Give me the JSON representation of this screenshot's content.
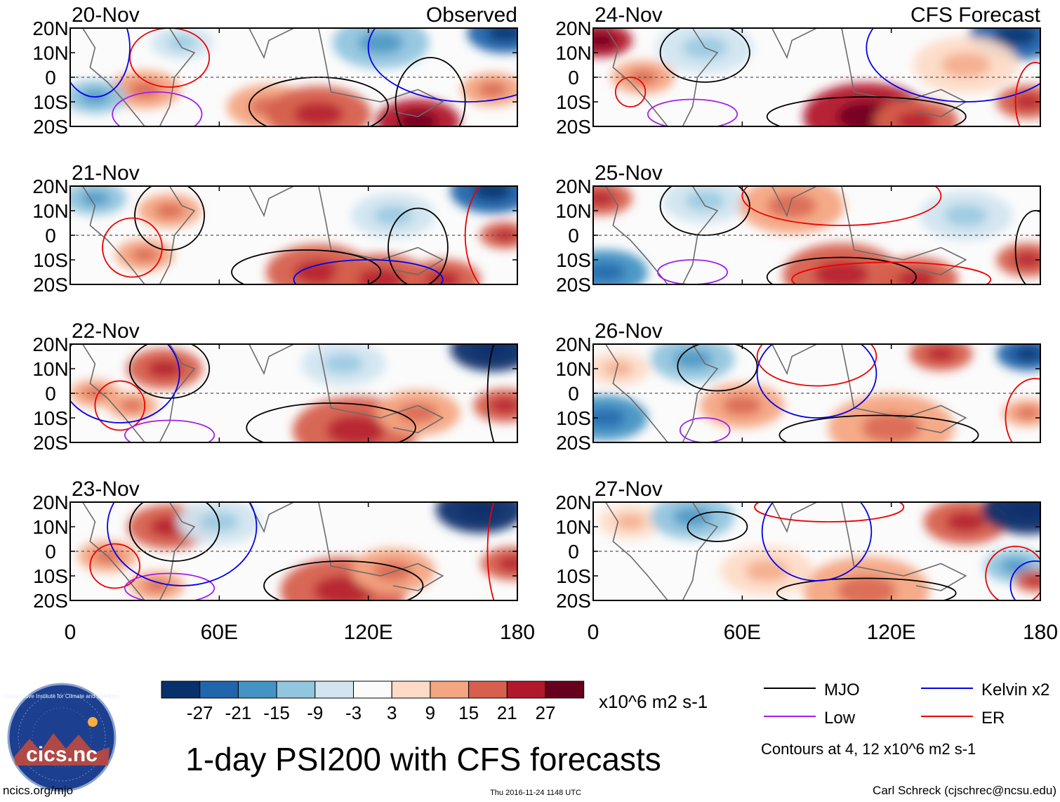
{
  "chart_data": {
    "type": "heatmap",
    "title": "1-day PSI200 with CFS forecasts",
    "variable": "PSI200",
    "units": "x10^6 m2 s-1",
    "columns": [
      {
        "key": "observed",
        "header": "Observed",
        "dates": [
          "20-Nov",
          "21-Nov",
          "22-Nov",
          "23-Nov"
        ]
      },
      {
        "key": "forecast",
        "header": "CFS Forecast",
        "dates": [
          "24-Nov",
          "25-Nov",
          "26-Nov",
          "27-Nov"
        ]
      }
    ],
    "x_axis": {
      "range": [
        0,
        180
      ],
      "ticks": [
        0,
        60,
        120,
        180
      ],
      "tick_labels": [
        "0",
        "60E",
        "120E",
        "180"
      ]
    },
    "y_axis": {
      "range": [
        -20,
        20
      ],
      "ticks": [
        20,
        10,
        0,
        -10,
        -20
      ],
      "tick_labels": [
        "20N",
        "10N",
        "0",
        "10S",
        "20S"
      ]
    },
    "colorbar": {
      "levels": [
        -27,
        -21,
        -15,
        -9,
        -3,
        3,
        9,
        15,
        21,
        27
      ],
      "tick_labels": [
        "-27",
        "-21",
        "-15",
        "-9",
        "-3",
        "3",
        "9",
        "15",
        "21",
        "27"
      ],
      "colors": [
        "#08306b",
        "#2166ac",
        "#4393c3",
        "#92c5de",
        "#d1e5f0",
        "#fbfbfb",
        "#fddbc7",
        "#f4a582",
        "#d6604d",
        "#b2182b",
        "#67001f"
      ]
    },
    "contour_legend": [
      {
        "label": "MJO",
        "color": "#000000"
      },
      {
        "label": "Kelvin x2",
        "color": "#0000ee"
      },
      {
        "label": "Low",
        "color": "#a020f0"
      },
      {
        "label": "ER",
        "color": "#ee0000"
      }
    ],
    "contour_note": "Contours at 4, 12 x10^6 m2 s-1"
  },
  "logo": {
    "text": "cics.nc",
    "ring_text": "Cooperative Institute for Climate and Satellites"
  },
  "footer": {
    "website": "ncics.org/mjo",
    "timestamp": "Thu 2016-11-24 1148 UTC",
    "author": "Carl Schreck (cjschrec@ncsu.edu)"
  }
}
